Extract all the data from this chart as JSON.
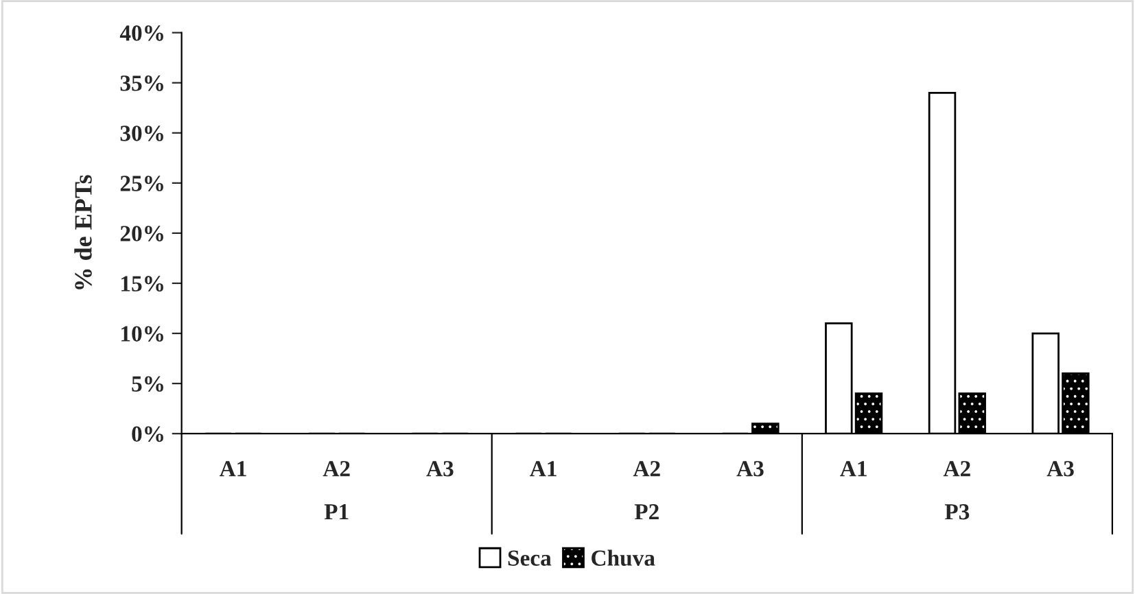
{
  "chart_data": {
    "type": "bar",
    "ylabel": "% de EPTs",
    "categories": [
      "A1",
      "A2",
      "A3",
      "A1",
      "A2",
      "A3",
      "A1",
      "A2",
      "A3"
    ],
    "annotations": [
      "P1",
      "P2",
      "P3"
    ],
    "series": [
      {
        "name": "Seca",
        "color": "#ffffff",
        "values": [
          0,
          0,
          0,
          0,
          0,
          0,
          11,
          34,
          10
        ]
      },
      {
        "name": "Chuva",
        "color": "#000000",
        "values": [
          0,
          0,
          0,
          0,
          0,
          1,
          4,
          4,
          6
        ]
      }
    ],
    "ylim": [
      0,
      40
    ],
    "yticks": [
      {
        "value": 0,
        "label": "0%"
      },
      {
        "value": 5,
        "label": "5%"
      },
      {
        "value": 10,
        "label": "10%"
      },
      {
        "value": 15,
        "label": "15%"
      },
      {
        "value": 20,
        "label": "20%"
      },
      {
        "value": 25,
        "label": "25%"
      },
      {
        "value": 30,
        "label": "30%"
      },
      {
        "value": 35,
        "label": "35%"
      },
      {
        "value": 40,
        "label": "40%"
      }
    ],
    "grid": false,
    "legend": "bottom"
  }
}
